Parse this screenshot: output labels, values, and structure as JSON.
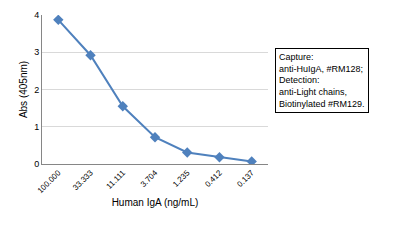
{
  "chart_data": {
    "type": "line",
    "xlabel": "Human IgA (ng/mL)",
    "ylabel": "Abs (405nm)",
    "categories": [
      "100.000",
      "33.333",
      "11.111",
      "3.704",
      "1.235",
      "0.412",
      "0.137"
    ],
    "values": [
      3.87,
      2.92,
      1.55,
      0.72,
      0.31,
      0.18,
      0.07
    ],
    "color": "#4f81bd",
    "marker": "diamond",
    "line_style": "solid",
    "ylim": [
      0,
      4
    ],
    "yticks": [
      0,
      1,
      2,
      3,
      4
    ],
    "grid": true,
    "annotations": [
      "Capture:",
      "anti-HuIgA, #RM128;",
      "Detection:",
      "anti-Light chains,",
      "Biotinylated #RM129."
    ]
  }
}
